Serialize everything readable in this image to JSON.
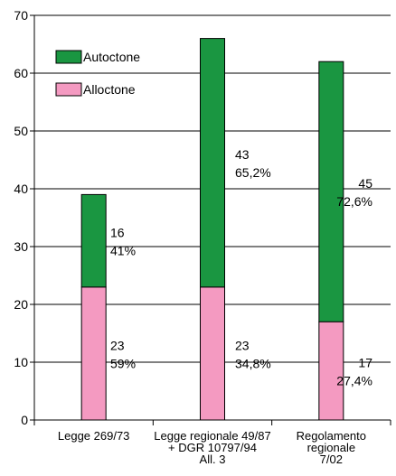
{
  "chart_data": {
    "type": "bar",
    "stacked": true,
    "categories": [
      [
        "Legge 269/73"
      ],
      [
        "Legge regionale 49/87",
        "+ DGR 10797/94",
        "All. 3"
      ],
      [
        "Regolamento",
        "regionale",
        "7/02"
      ]
    ],
    "series": [
      {
        "name": "Alloctone",
        "values": [
          23,
          23,
          17
        ],
        "color": "#f49ac1"
      },
      {
        "name": "Autoctone",
        "values": [
          16,
          43,
          45
        ],
        "color": "#1a9641"
      }
    ],
    "annotations": [
      {
        "top": [
          "16",
          "41%"
        ],
        "bottom": [
          "23",
          "59%"
        ]
      },
      {
        "top": [
          "43",
          "65,2%"
        ],
        "bottom": [
          "23",
          "34,8%"
        ]
      },
      {
        "top": [
          "45",
          "72,6%"
        ],
        "bottom": [
          "17",
          "27,4%"
        ]
      }
    ],
    "legend_order": [
      "Autoctone",
      "Alloctone"
    ],
    "legend_position": "top-left",
    "yticks": [
      0,
      10,
      20,
      30,
      40,
      50,
      60,
      70
    ],
    "ylim": [
      0,
      70
    ],
    "grid": true,
    "title": "",
    "xlabel": "",
    "ylabel": ""
  }
}
